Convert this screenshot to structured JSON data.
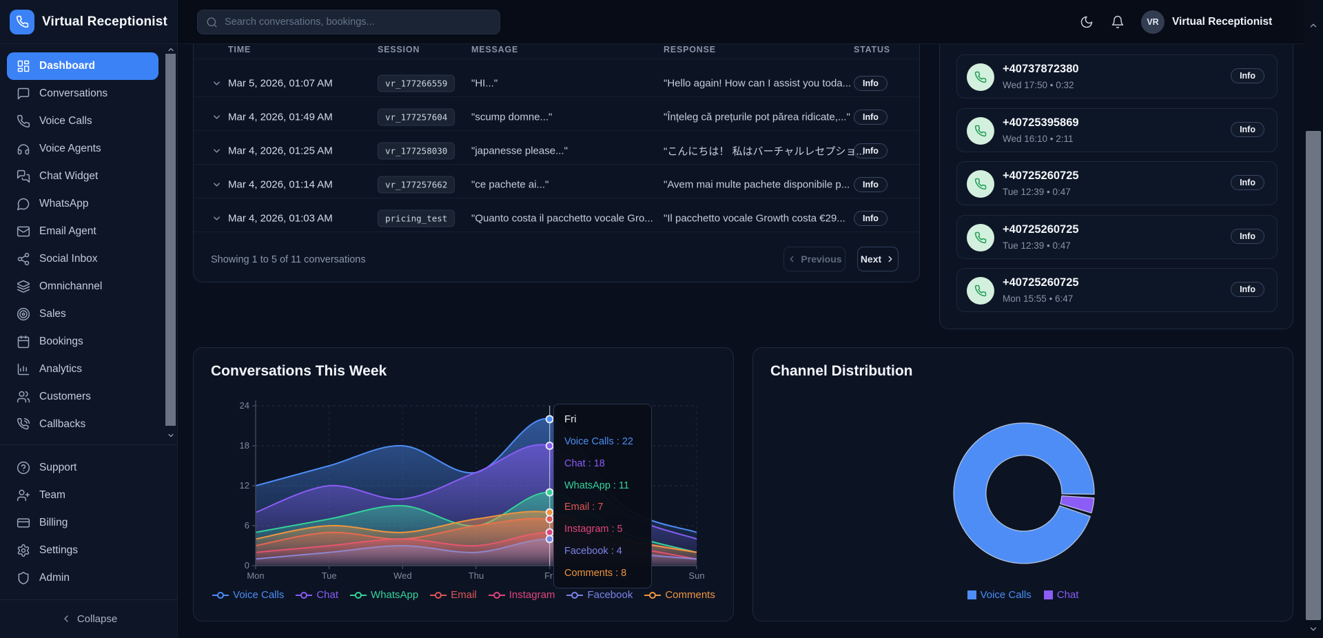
{
  "brand": {
    "name": "Virtual Receptionist"
  },
  "header": {
    "search_placeholder": "Search conversations, bookings...",
    "user_initials": "VR",
    "user_name": "Virtual Receptionist"
  },
  "sidebar": {
    "nav": [
      {
        "label": "Dashboard",
        "icon": "dashboard",
        "active": true
      },
      {
        "label": "Conversations",
        "icon": "message-square",
        "active": false
      },
      {
        "label": "Voice Calls",
        "icon": "phone",
        "active": false
      },
      {
        "label": "Voice Agents",
        "icon": "headphones",
        "active": false
      },
      {
        "label": "Chat Widget",
        "icon": "messages-square",
        "active": false
      },
      {
        "label": "WhatsApp",
        "icon": "message-circle",
        "active": false
      },
      {
        "label": "Email Agent",
        "icon": "mail",
        "active": false
      },
      {
        "label": "Social Inbox",
        "icon": "share",
        "active": false
      },
      {
        "label": "Omnichannel",
        "icon": "layers",
        "active": false
      },
      {
        "label": "Sales",
        "icon": "target",
        "active": false
      },
      {
        "label": "Bookings",
        "icon": "calendar",
        "active": false
      },
      {
        "label": "Analytics",
        "icon": "bar-chart",
        "active": false
      },
      {
        "label": "Customers",
        "icon": "users",
        "active": false
      },
      {
        "label": "Callbacks",
        "icon": "phone-call",
        "active": false
      }
    ],
    "secondary": [
      {
        "label": "Support",
        "icon": "help-circle"
      },
      {
        "label": "Team",
        "icon": "user-plus"
      },
      {
        "label": "Billing",
        "icon": "credit-card"
      },
      {
        "label": "Settings",
        "icon": "settings"
      },
      {
        "label": "Admin",
        "icon": "shield"
      }
    ],
    "collapse_label": "Collapse"
  },
  "conversations_table": {
    "columns": [
      "TIME",
      "SESSION",
      "MESSAGE",
      "RESPONSE",
      "STATUS"
    ],
    "rows": [
      {
        "time": "Mar 5, 2026, 01:07 AM",
        "session": "vr_177266559",
        "message": "\"HI...\"",
        "response": "\"Hello again! How can I assist you toda...",
        "status": "Info"
      },
      {
        "time": "Mar 4, 2026, 01:49 AM",
        "session": "vr_177257604",
        "message": "\"scump domne...\"",
        "response": "\"Înțeleg că prețurile pot părea ridicate,...\"",
        "status": "Info"
      },
      {
        "time": "Mar 4, 2026, 01:25 AM",
        "session": "vr_177258030",
        "message": "\"japanesse please...\"",
        "response": "\"こんにちは！ 私はバーチャルレセプショ...",
        "status": "Info"
      },
      {
        "time": "Mar 4, 2026, 01:14 AM",
        "session": "vr_177257662",
        "message": "\"ce pachete ai...\"",
        "response": "\"Avem mai multe pachete disponibile p...",
        "status": "Info"
      },
      {
        "time": "Mar 4, 2026, 01:03 AM",
        "session": "pricing_test",
        "message": "\"Quanto costa il pacchetto vocale Gro...",
        "response": "\"Il pacchetto vocale Growth costa €29...",
        "status": "Info"
      }
    ],
    "footer": {
      "summary": "Showing 1 to 5 of 11 conversations",
      "previous_label": "Previous",
      "next_label": "Next"
    }
  },
  "calls_panel": {
    "items": [
      {
        "number": "+40737872380",
        "meta": "Wed 17:50 • 0:32",
        "action": "Info"
      },
      {
        "number": "+40725395869",
        "meta": "Wed 16:10 • 2:11",
        "action": "Info"
      },
      {
        "number": "+40725260725",
        "meta": "Tue 12:39 • 0:47",
        "action": "Info"
      },
      {
        "number": "+40725260725",
        "meta": "Tue 12:39 • 0:47",
        "action": "Info"
      },
      {
        "number": "+40725260725",
        "meta": "Mon 15:55 • 6:47",
        "action": "Info"
      }
    ]
  },
  "chart_data": [
    {
      "type": "area",
      "title": "Conversations This Week",
      "x": [
        "Mon",
        "Tue",
        "Wed",
        "Thu",
        "Fri",
        "Sat",
        "Sun"
      ],
      "series": [
        {
          "name": "Voice Calls",
          "color": "#4e8df5",
          "values": [
            12,
            15,
            18,
            14,
            22,
            9,
            5
          ]
        },
        {
          "name": "Chat",
          "color": "#8b5cf6",
          "values": [
            8,
            12,
            10,
            14,
            18,
            8,
            4
          ]
        },
        {
          "name": "WhatsApp",
          "color": "#34d399",
          "values": [
            5,
            7,
            9,
            6,
            11,
            5,
            2
          ]
        },
        {
          "name": "Email",
          "color": "#e25555",
          "values": [
            3,
            5,
            4,
            6,
            7,
            4,
            2
          ]
        },
        {
          "name": "Instagram",
          "color": "#e0447c",
          "values": [
            2,
            3,
            4,
            3,
            5,
            3,
            1
          ]
        },
        {
          "name": "Facebook",
          "color": "#7c83e8",
          "values": [
            1,
            2,
            3,
            2,
            4,
            2,
            1
          ]
        },
        {
          "name": "Comments",
          "color": "#f0953f",
          "values": [
            4,
            6,
            5,
            7,
            8,
            4,
            2
          ]
        }
      ],
      "ylim": [
        0,
        24
      ],
      "yticks": [
        0,
        6,
        12,
        18,
        24
      ],
      "grid": true,
      "legend_position": "bottom",
      "tooltip": {
        "label": "Fri",
        "x_index": 4,
        "entries": [
          {
            "name": "Voice Calls",
            "value": 22
          },
          {
            "name": "Chat",
            "value": 18
          },
          {
            "name": "WhatsApp",
            "value": 11
          },
          {
            "name": "Email",
            "value": 7
          },
          {
            "name": "Instagram",
            "value": 5
          },
          {
            "name": "Facebook",
            "value": 4
          },
          {
            "name": "Comments",
            "value": 8
          }
        ]
      }
    },
    {
      "type": "pie",
      "title": "Channel Distribution",
      "donut": true,
      "labels": [
        "Voice Calls",
        "Chat"
      ],
      "values": [
        96.5,
        3.5
      ],
      "colors": [
        "#4e8df5",
        "#8b5cf6"
      ],
      "legend_position": "bottom"
    }
  ]
}
